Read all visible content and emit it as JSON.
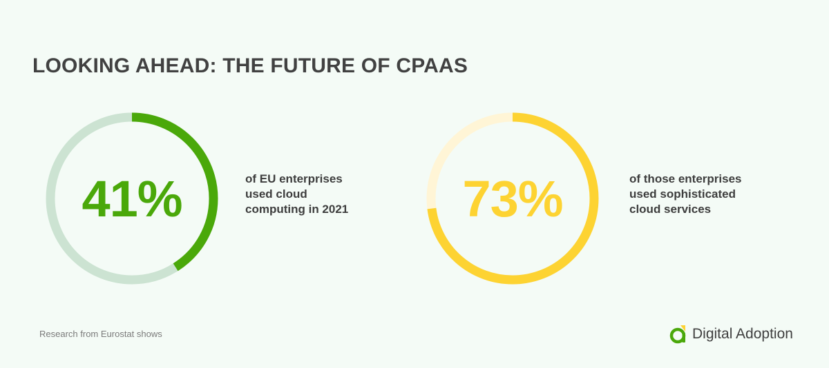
{
  "title": "LOOKING AHEAD: THE FUTURE OF CPAAS",
  "stats": [
    {
      "value_label": "41%",
      "caption_lines": [
        "of EU enterprises",
        "used cloud",
        "computing in 2021"
      ]
    },
    {
      "value_label": "73%",
      "caption_lines": [
        "of those enterprises",
        "used sophisticated",
        "cloud services"
      ]
    }
  ],
  "chart_data": [
    {
      "type": "pie",
      "style": "donut",
      "values": [
        41,
        59
      ],
      "colors": [
        "#4aa80a",
        "#cce3d2"
      ]
    },
    {
      "type": "pie",
      "style": "donut",
      "values": [
        73,
        27
      ],
      "colors": [
        "#fdd332",
        "#fff5d6"
      ]
    }
  ],
  "footnote": "Research from Eurostat shows",
  "brand": {
    "name": "Digital Adoption",
    "logo_icon": "digital-adoption-logo-icon",
    "colors": [
      "#4aa80a",
      "#fdd332"
    ]
  }
}
